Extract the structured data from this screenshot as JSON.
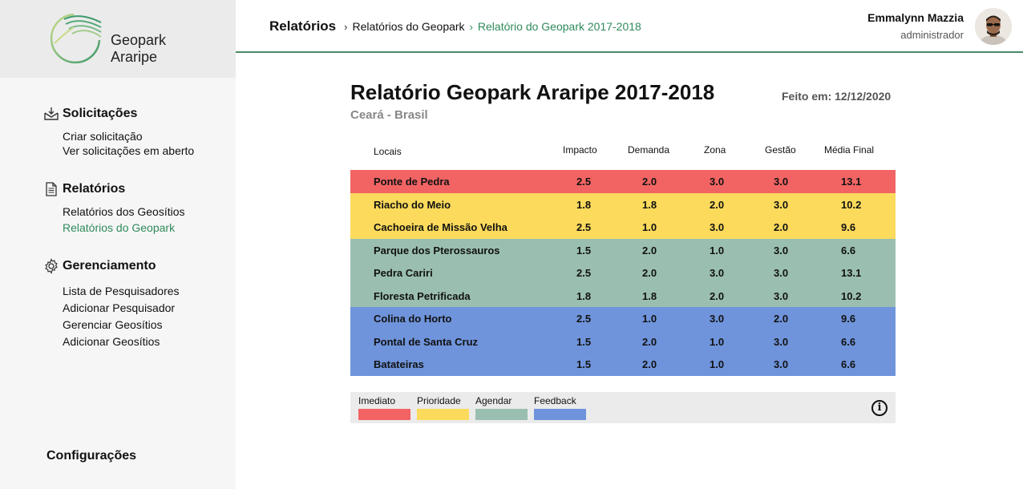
{
  "brand": {
    "line1": "Geopark",
    "line2": "Araripe"
  },
  "sidebar": {
    "sections": [
      {
        "title": "Solicitações",
        "icon": "inbox-download-icon",
        "items": [
          "Criar solicitação",
          "Ver solicitações em aberto"
        ]
      },
      {
        "title": "Relatórios",
        "icon": "document-icon",
        "items": [
          "Relatórios dos Geosítios",
          "Relatórios do Geopark"
        ]
      },
      {
        "title": "Gerenciamento",
        "icon": "gear-icon",
        "items": [
          "Lista de Pesquisadores",
          "Adicionar Pesquisador",
          "Gerenciar Geosítios",
          "Adicionar Geosítios"
        ]
      }
    ],
    "active_item": "Relatórios do Geopark",
    "config_label": "Configurações"
  },
  "breadcrumb": {
    "root": "Relatórios",
    "level1": "Relatórios do Geopark",
    "current": "Relatório do Geopark 2017-2018",
    "sep": "›"
  },
  "user": {
    "name": "Emmalynn Mazzia",
    "role": "administrador"
  },
  "report": {
    "title": "Relatório Geopark Araripe 2017-2018",
    "subtitle": "Ceará - Brasil",
    "date": "Feito em: 12/12/2020",
    "columns": [
      "Locais",
      "Impacto",
      "Demanda",
      "Zona",
      "Gestão",
      "Média Final"
    ],
    "rows": [
      {
        "local": "Ponte de Pedra",
        "impacto": "2.5",
        "demanda": "2.0",
        "zona": "3.0",
        "gestao": "3.0",
        "media": "13.1",
        "category": "imediato"
      },
      {
        "local": "Riacho do Meio",
        "impacto": "1.8",
        "demanda": "1.8",
        "zona": "2.0",
        "gestao": "3.0",
        "media": "10.2",
        "category": "prioridade"
      },
      {
        "local": "Cachoeira de Missão Velha",
        "impacto": "2.5",
        "demanda": "1.0",
        "zona": "3.0",
        "gestao": "2.0",
        "media": "9.6",
        "category": "prioridade"
      },
      {
        "local": "Parque dos Pterossauros",
        "impacto": "1.5",
        "demanda": "2.0",
        "zona": "1.0",
        "gestao": "3.0",
        "media": "6.6",
        "category": "agendar"
      },
      {
        "local": "Pedra Cariri",
        "impacto": "2.5",
        "demanda": "2.0",
        "zona": "3.0",
        "gestao": "3.0",
        "media": "13.1",
        "category": "agendar"
      },
      {
        "local": "Floresta Petrificada",
        "impacto": "1.8",
        "demanda": "1.8",
        "zona": "2.0",
        "gestao": "3.0",
        "media": "10.2",
        "category": "agendar"
      },
      {
        "local": "Colina do Horto",
        "impacto": "2.5",
        "demanda": "1.0",
        "zona": "3.0",
        "gestao": "2.0",
        "media": "9.6",
        "category": "feedback"
      },
      {
        "local": "Pontal de Santa Cruz",
        "impacto": "1.5",
        "demanda": "2.0",
        "zona": "1.0",
        "gestao": "3.0",
        "media": "6.6",
        "category": "feedback"
      },
      {
        "local": "Batateiras",
        "impacto": "1.5",
        "demanda": "2.0",
        "zona": "1.0",
        "gestao": "3.0",
        "media": "6.6",
        "category": "feedback"
      }
    ]
  },
  "legend": [
    {
      "key": "imediato",
      "label": "Imediato",
      "color": "#f26464"
    },
    {
      "key": "prioridade",
      "label": "Prioridade",
      "color": "#fbda5c"
    },
    {
      "key": "agendar",
      "label": "Agendar",
      "color": "#9abfb0"
    },
    {
      "key": "feedback",
      "label": "Feedback",
      "color": "#6f94db"
    }
  ],
  "colors": {
    "accent": "#2f8a5a",
    "sidebar_bg": "#f6f6f6",
    "logo_bg": "#ebebeb"
  },
  "info_icon": {
    "icon": "info-icon",
    "glyph": "i"
  }
}
